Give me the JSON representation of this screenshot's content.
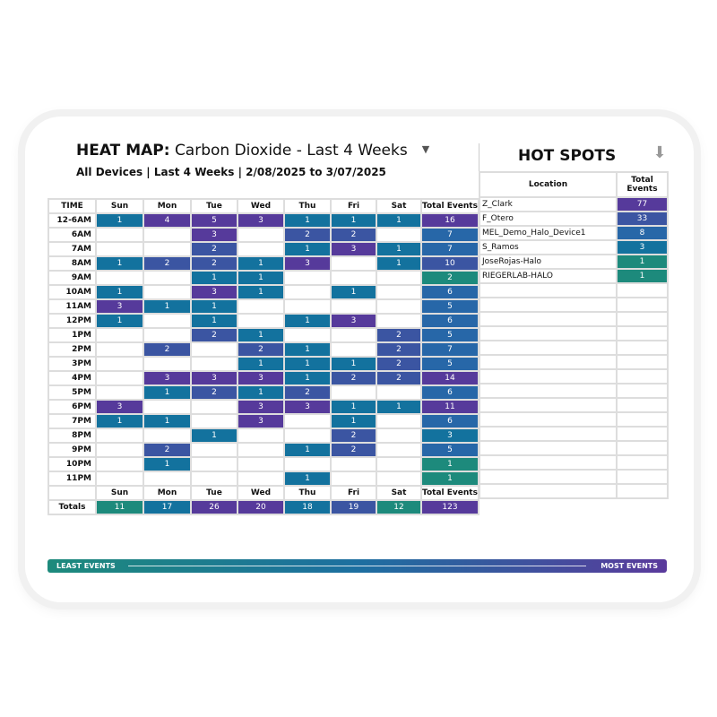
{
  "header": {
    "title_bold": "HEAT MAP:",
    "title_rest": "Carbon Dioxide - Last 4 Weeks",
    "subtitle": "All Devices | Last 4 Weeks | 2/08/2025 to 3/07/2025"
  },
  "heatmap": {
    "columns": [
      "TIME",
      "Sun",
      "Mon",
      "Tue",
      "Wed",
      "Thu",
      "Fri",
      "Sat",
      "Total Events"
    ],
    "rows": [
      {
        "time": "12-6AM",
        "values": [
          1,
          4,
          5,
          3,
          1,
          1,
          1
        ],
        "total": 16
      },
      {
        "time": "6AM",
        "values": [
          null,
          null,
          3,
          null,
          2,
          2,
          null
        ],
        "total": 7
      },
      {
        "time": "7AM",
        "values": [
          null,
          null,
          2,
          null,
          1,
          3,
          1
        ],
        "total": 7
      },
      {
        "time": "8AM",
        "values": [
          1,
          2,
          2,
          1,
          3,
          null,
          1
        ],
        "total": 10
      },
      {
        "time": "9AM",
        "values": [
          null,
          null,
          1,
          1,
          null,
          null,
          null
        ],
        "total": 2
      },
      {
        "time": "10AM",
        "values": [
          1,
          null,
          3,
          1,
          null,
          1,
          null
        ],
        "total": 6
      },
      {
        "time": "11AM",
        "values": [
          3,
          1,
          1,
          null,
          null,
          null,
          null
        ],
        "total": 5
      },
      {
        "time": "12PM",
        "values": [
          1,
          null,
          1,
          null,
          1,
          3,
          null
        ],
        "total": 6
      },
      {
        "time": "1PM",
        "values": [
          null,
          null,
          2,
          1,
          null,
          null,
          2
        ],
        "total": 5
      },
      {
        "time": "2PM",
        "values": [
          null,
          2,
          null,
          2,
          1,
          null,
          2
        ],
        "total": 7
      },
      {
        "time": "3PM",
        "values": [
          null,
          null,
          null,
          1,
          1,
          1,
          2
        ],
        "total": 5
      },
      {
        "time": "4PM",
        "values": [
          null,
          3,
          3,
          3,
          1,
          2,
          2
        ],
        "total": 14
      },
      {
        "time": "5PM",
        "values": [
          null,
          1,
          2,
          1,
          2,
          null,
          null
        ],
        "total": 6
      },
      {
        "time": "6PM",
        "values": [
          3,
          null,
          null,
          3,
          3,
          1,
          1
        ],
        "total": 11
      },
      {
        "time": "7PM",
        "values": [
          1,
          1,
          null,
          3,
          null,
          1,
          null
        ],
        "total": 6
      },
      {
        "time": "8PM",
        "values": [
          null,
          null,
          1,
          null,
          null,
          2,
          null
        ],
        "total": 3
      },
      {
        "time": "9PM",
        "values": [
          null,
          2,
          null,
          null,
          1,
          2,
          null
        ],
        "total": 5
      },
      {
        "time": "10PM",
        "values": [
          null,
          1,
          null,
          null,
          null,
          null,
          null
        ],
        "total": 1
      },
      {
        "time": "11PM",
        "values": [
          null,
          null,
          null,
          null,
          1,
          null,
          null
        ],
        "total": 1
      }
    ],
    "totals_label": "Totals",
    "totals": [
      11,
      17,
      26,
      20,
      18,
      19,
      12
    ],
    "grand_total": 123
  },
  "hot_spots": {
    "title": "HOT SPOTS",
    "columns": [
      "Location",
      "Total Events"
    ],
    "rows": [
      {
        "location": "Z_Clark",
        "total": 77
      },
      {
        "location": "F_Otero",
        "total": 33
      },
      {
        "location": "MEL_Demo_Halo_Device1",
        "total": 8
      },
      {
        "location": "S_Ramos",
        "total": 3
      },
      {
        "location": "JoseRojas-Halo",
        "total": 1
      },
      {
        "location": "RIEGERLAB-HALO",
        "total": 1
      }
    ]
  },
  "legend": {
    "least": "LEAST EVENTS",
    "most": "MOST EVENTS"
  },
  "colors": {
    "low": "#1d8a7c",
    "mid_low": "#13729e",
    "mid": "#2767a8",
    "mid_high": "#3b55a2",
    "high": "#563a9b"
  },
  "icons": {
    "dropdown": "caret-down-icon",
    "download": "download-icon"
  }
}
